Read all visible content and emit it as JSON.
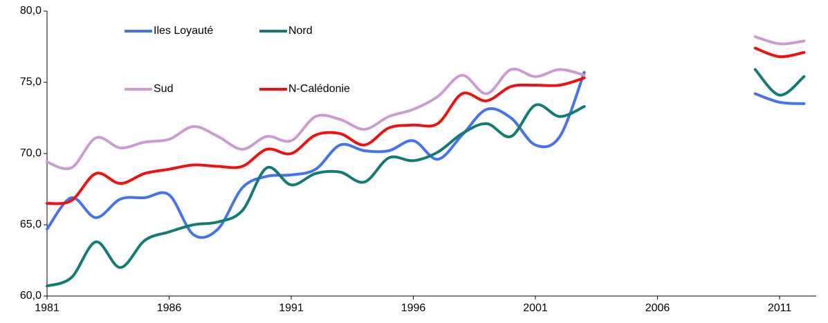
{
  "chart_data": {
    "type": "line",
    "x": [
      1981,
      1982,
      1983,
      1984,
      1985,
      1986,
      1987,
      1988,
      1989,
      1990,
      1991,
      1992,
      1993,
      1994,
      1995,
      1996,
      1997,
      1998,
      1999,
      2000,
      2001,
      2002,
      2003,
      2004,
      2005,
      2006,
      2007,
      2008,
      2009,
      2010,
      2011,
      2012
    ],
    "series": [
      {
        "name": "Iles Loyauté",
        "color": "#4472f0",
        "values": [
          64.7,
          66.9,
          65.5,
          66.8,
          66.9,
          67.1,
          64.3,
          64.7,
          67.6,
          68.4,
          68.5,
          68.9,
          70.6,
          70.2,
          70.2,
          70.9,
          69.6,
          71.3,
          73.1,
          72.5,
          70.6,
          71.2,
          75.7,
          null,
          null,
          null,
          null,
          null,
          null,
          74.2,
          73.6,
          73.5
        ]
      },
      {
        "name": "Nord",
        "color": "#127c72",
        "values": [
          60.7,
          61.3,
          63.8,
          62.0,
          63.9,
          64.5,
          65.0,
          65.2,
          66.0,
          69.0,
          67.8,
          68.6,
          68.7,
          68.0,
          69.7,
          69.5,
          70.1,
          71.4,
          72.1,
          71.2,
          73.4,
          72.6,
          73.3,
          null,
          null,
          null,
          null,
          null,
          null,
          75.9,
          74.1,
          75.4
        ]
      },
      {
        "name": "Sud",
        "color": "#cc9cd0",
        "values": [
          69.4,
          69.0,
          71.1,
          70.4,
          70.8,
          71.0,
          71.9,
          71.2,
          70.3,
          71.2,
          70.9,
          72.6,
          72.4,
          71.7,
          72.6,
          73.1,
          74.0,
          75.5,
          74.2,
          75.9,
          75.4,
          75.9,
          75.5,
          null,
          null,
          null,
          null,
          null,
          null,
          78.2,
          77.7,
          77.9
        ]
      },
      {
        "name": "N-Calédonie",
        "color": "#f01010",
        "values": [
          66.5,
          66.7,
          68.6,
          67.9,
          68.6,
          68.9,
          69.2,
          69.1,
          69.1,
          70.3,
          70.0,
          71.3,
          71.4,
          70.6,
          71.8,
          72.0,
          72.1,
          74.2,
          73.7,
          74.7,
          74.8,
          74.8,
          75.3,
          null,
          null,
          null,
          null,
          null,
          null,
          77.4,
          76.8,
          77.1
        ]
      }
    ],
    "xlim": [
      1981,
      2012.5
    ],
    "xticks": [
      1981,
      1986,
      1991,
      1996,
      2001,
      2006,
      2011
    ],
    "ylim": [
      60,
      80
    ],
    "yticks": [
      {
        "value": 60,
        "label": "60,0"
      },
      {
        "value": 65,
        "label": "65,0"
      },
      {
        "value": 70,
        "label": "70,0"
      },
      {
        "value": 75,
        "label": "75,0"
      },
      {
        "value": 80,
        "label": "80,0"
      }
    ],
    "grid": false
  }
}
